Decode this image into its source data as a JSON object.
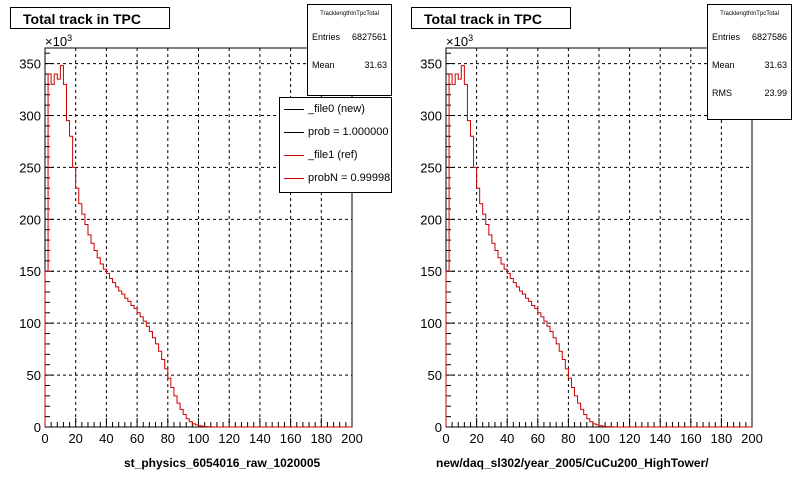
{
  "left": {
    "title": "Total track in TPC",
    "stats": {
      "title": "TracklengthInTpcTotal",
      "entries_label": "Entries",
      "entries_value": "6827561",
      "mean_label": "Mean",
      "mean_value": "31.63"
    },
    "legend": [
      {
        "text": "_file0 (new)",
        "color": "#000000"
      },
      {
        "text": "prob = 1.000000",
        "color": "#000000"
      },
      {
        "text": "_file1 (ref)",
        "color": "#cc0000"
      },
      {
        "text": "probN = 0.999985",
        "color": "#cc0000"
      }
    ],
    "xlabel": "st_physics_6054016_raw_1020005"
  },
  "right": {
    "title": "Total track in TPC",
    "stats": {
      "title": "TracklengthInTpcTotal",
      "entries_label": "Entries",
      "entries_value": "6827586",
      "mean_label": "Mean",
      "mean_value": "31.63",
      "rms_label": "RMS",
      "rms_value": "23.99"
    },
    "xlabel": "new/daq_sl302/year_2005/CuCu200_HighTower/"
  },
  "chart_data": [
    {
      "type": "line",
      "title": "Total track in TPC",
      "xlabel": "st_physics_6054016_raw_1020005",
      "ylabel": "",
      "y_multiplier_label": "×10",
      "y_multiplier_exp": "3",
      "xlim": [
        0,
        200
      ],
      "ylim": [
        0,
        365
      ],
      "xticks": [
        0,
        20,
        40,
        60,
        80,
        100,
        120,
        140,
        160,
        180,
        200
      ],
      "yticks": [
        0,
        50,
        100,
        150,
        200,
        250,
        300,
        350
      ],
      "grid": true,
      "bin_width": 2,
      "line_color": "#cc0000",
      "series": [
        {
          "name": "_file1 (ref)",
          "values": [
            150,
            340,
            330,
            340,
            335,
            348,
            330,
            295,
            280,
            250,
            230,
            215,
            205,
            195,
            185,
            177,
            170,
            163,
            157,
            152,
            148,
            143,
            139,
            135,
            131,
            128,
            124,
            121,
            117,
            114,
            110,
            106,
            102,
            97,
            92,
            86,
            80,
            73,
            65,
            56,
            47,
            38,
            30,
            23,
            17,
            12,
            8,
            5,
            3,
            2,
            1.2,
            0.7,
            0.4,
            0.2,
            0.1,
            0,
            0,
            0,
            0,
            0,
            0,
            0,
            0,
            0,
            0,
            0,
            0,
            0,
            0,
            0,
            0,
            0,
            0,
            0,
            0,
            0,
            0,
            0,
            0,
            0,
            0,
            0,
            0,
            0,
            0,
            0,
            0,
            0,
            0,
            0,
            0,
            0,
            0,
            0,
            0,
            0,
            0,
            0,
            0,
            0
          ]
        }
      ]
    },
    {
      "type": "line",
      "title": "Total track in TPC",
      "xlabel": "new/daq_sl302/year_2005/CuCu200_HighTower/",
      "ylabel": "",
      "y_multiplier_label": "×10",
      "y_multiplier_exp": "3",
      "xlim": [
        0,
        200
      ],
      "ylim": [
        0,
        365
      ],
      "xticks": [
        0,
        20,
        40,
        60,
        80,
        100,
        120,
        140,
        160,
        180,
        200
      ],
      "yticks": [
        0,
        50,
        100,
        150,
        200,
        250,
        300,
        350
      ],
      "grid": true,
      "bin_width": 2,
      "line_color": "#cc0000",
      "series": [
        {
          "values": [
            150,
            340,
            330,
            340,
            335,
            348,
            330,
            295,
            280,
            250,
            230,
            215,
            205,
            195,
            185,
            177,
            170,
            163,
            157,
            152,
            148,
            143,
            139,
            135,
            131,
            128,
            124,
            121,
            117,
            114,
            110,
            106,
            102,
            97,
            92,
            86,
            80,
            73,
            65,
            56,
            47,
            38,
            30,
            23,
            17,
            12,
            8,
            5,
            3,
            2,
            1.2,
            0.7,
            0.4,
            0.2,
            0.1,
            0,
            0,
            0,
            0,
            0,
            0,
            0,
            0,
            0,
            0,
            0,
            0,
            0,
            0,
            0,
            0,
            0,
            0,
            0,
            0,
            0,
            0,
            0,
            0,
            0,
            0,
            0,
            0,
            0,
            0,
            0,
            0,
            0,
            0,
            0,
            0,
            0,
            0,
            0,
            0,
            0,
            0,
            0,
            0,
            0
          ]
        }
      ]
    }
  ]
}
